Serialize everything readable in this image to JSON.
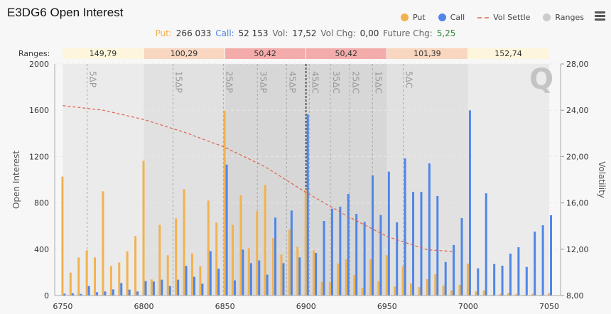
{
  "header": {
    "title": "E3DG6 Open Interest"
  },
  "legend": [
    {
      "label": "Put",
      "color": "#f2b24e",
      "kind": "dot"
    },
    {
      "label": "Call",
      "color": "#4f86e8",
      "kind": "dot"
    },
    {
      "label": "Vol Settle",
      "color": "#e0604e",
      "kind": "dash"
    },
    {
      "label": "Ranges",
      "color": "#cccccc",
      "kind": "dot"
    }
  ],
  "stats": {
    "put_label": "Put:",
    "put_value": "266 033",
    "call_label": "Call:",
    "call_value": "52 153",
    "vol_label": "Vol:",
    "vol_value": "17,52",
    "volchg_label": "Vol Chg:",
    "volchg_value": "0,00",
    "futchg_label": "Future Chg:",
    "futchg_value": "5,25"
  },
  "ranges": {
    "label": "Ranges:",
    "items": [
      {
        "value": "149,79",
        "from": 6750,
        "to": 6800,
        "color": "#fdf6dc",
        "band": "#ebebeb"
      },
      {
        "value": "100,29",
        "from": 6800,
        "to": 6850,
        "color": "#f8d6bf",
        "band": "#e1e1e1"
      },
      {
        "value": "50,42",
        "from": 6850,
        "to": 6900,
        "color": "#f3acaa",
        "band": "#d7d7d7"
      },
      {
        "value": "50,42",
        "from": 6900,
        "to": 6950,
        "color": "#f3acaa",
        "band": "#d7d7d7"
      },
      {
        "value": "101,39",
        "from": 6950,
        "to": 7000,
        "color": "#f8d6bf",
        "band": "#e1e1e1"
      },
      {
        "value": "152,74",
        "from": 7000,
        "to": 7050,
        "color": "#fdf6dc",
        "band": "#ebebeb"
      }
    ]
  },
  "chart_data": {
    "type": "bar",
    "ylabel": "Open Interest",
    "y2label": "Volatility",
    "xlim": [
      6745,
      7057
    ],
    "ylim": [
      0,
      2000
    ],
    "y2lim": [
      8,
      28
    ],
    "xticks": [
      "6750",
      "6800",
      "6850",
      "6900",
      "6950",
      "7000",
      "7050"
    ],
    "yticks": [
      "0",
      "400",
      "800",
      "1200",
      "1600",
      "2000"
    ],
    "y2ticks": [
      "8,00",
      "12,00",
      "16,00",
      "20,00",
      "24,00",
      "28,00"
    ],
    "grid": true,
    "future_strike": 6900,
    "strikes_start": 6750,
    "strikes_step": 5,
    "series": [
      {
        "name": "Put",
        "color": "#f2b24e",
        "values": [
          1027,
          198,
          329,
          391,
          329,
          900,
          254,
          286,
          382,
          513,
          1164,
          139,
          611,
          348,
          667,
          918,
          364,
          254,
          820,
          630,
          1597,
          611,
          867,
          409,
          728,
          953,
          497,
          354,
          569,
          421,
          916,
          389,
          117,
          117,
          276,
          313,
          178,
          67,
          313,
          123,
          348,
          78,
          252,
          106,
          72,
          141,
          184,
          86,
          45,
          92,
          276,
          35,
          45,
          6,
          14,
          20,
          14,
          6,
          14,
          6,
          20
        ]
      },
      {
        "name": "Call",
        "color": "#4f86e8",
        "values": [
          16,
          20,
          14,
          82,
          29,
          35,
          53,
          108,
          51,
          35,
          125,
          121,
          137,
          82,
          137,
          256,
          162,
          102,
          384,
          231,
          1131,
          131,
          397,
          280,
          303,
          180,
          673,
          280,
          734,
          329,
          1564,
          368,
          644,
          750,
          767,
          877,
          705,
          636,
          1037,
          695,
          1070,
          632,
          1184,
          896,
          896,
          1141,
          859,
          290,
          436,
          669,
          1599,
          235,
          883,
          272,
          258,
          362,
          417,
          247,
          552,
          607,
          693
        ]
      },
      {
        "name": "Vol Settle",
        "color": "#e0604e",
        "axis": "right",
        "x": [
          6750,
          6775,
          6800,
          6825,
          6850,
          6875,
          6900,
          6925,
          6950,
          6975,
          6992
        ],
        "values": [
          24.4,
          24.0,
          23.2,
          22.1,
          20.8,
          19.1,
          16.9,
          14.9,
          13.1,
          11.95,
          11.8
        ]
      }
    ],
    "delta_lines": [
      {
        "label": "5ΔP",
        "strike": 6765
      },
      {
        "label": "15ΔP",
        "strike": 6818
      },
      {
        "label": "25ΔP",
        "strike": 6849
      },
      {
        "label": "35ΔP",
        "strike": 6870
      },
      {
        "label": "45ΔP",
        "strike": 6888
      },
      {
        "label": "45ΔC",
        "strike": 6902
      },
      {
        "label": "35ΔC",
        "strike": 6915
      },
      {
        "label": "25ΔC",
        "strike": 6927
      },
      {
        "label": "15ΔC",
        "strike": 6941
      },
      {
        "label": "5ΔC",
        "strike": 6960
      }
    ]
  }
}
